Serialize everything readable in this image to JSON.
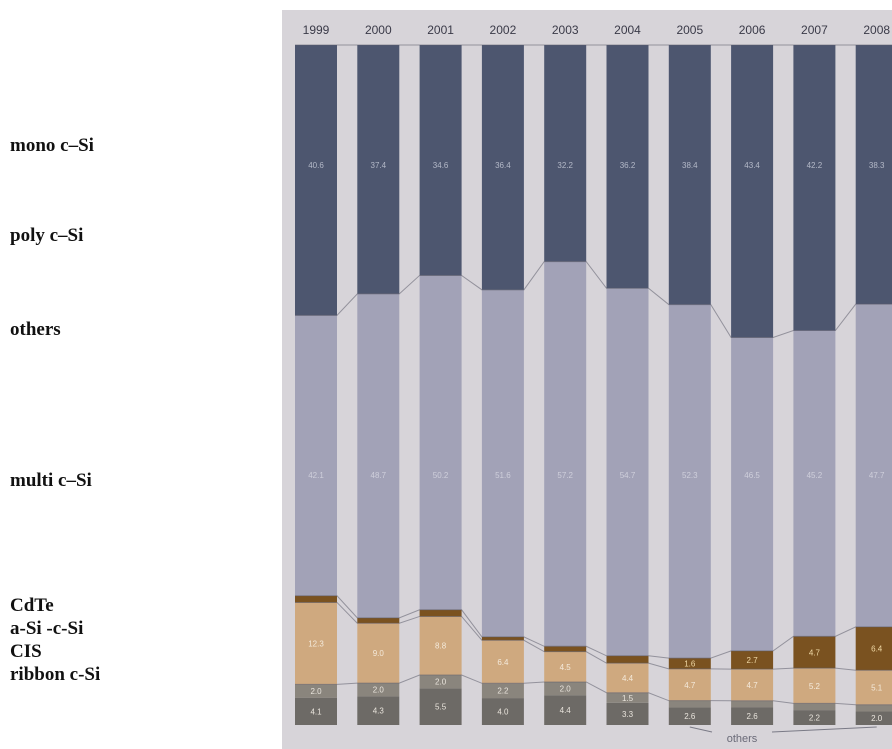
{
  "legend": {
    "mono": "mono c–Si",
    "poly": "poly c–Si",
    "others": "others",
    "multi": "multi c–Si",
    "cdte": "CdTe",
    "asi": "a-Si -c-Si",
    "cis": "CIS",
    "ribbon": "ribbon c-Si"
  },
  "chart_data": {
    "type": "bar",
    "stacked": true,
    "ylim": [
      0,
      100
    ],
    "categories": [
      "1999",
      "2000",
      "2001",
      "2002",
      "2003",
      "2004",
      "2005",
      "2006",
      "2007",
      "2008"
    ],
    "series": [
      {
        "name": "ribbon c-Si",
        "values": [
          4.1,
          4.3,
          5.5,
          4.0,
          4.4,
          3.3,
          2.6,
          2.6,
          2.2,
          2.0
        ]
      },
      {
        "name": "CIS",
        "values": [
          2.0,
          2.0,
          2.0,
          2.2,
          2.0,
          1.5,
          1.0,
          1.0,
          1.0,
          1.0
        ]
      },
      {
        "name": "a-Si -c-Si",
        "values": [
          12.3,
          9.0,
          8.8,
          6.4,
          4.5,
          4.4,
          4.7,
          4.7,
          5.2,
          5.1
        ]
      },
      {
        "name": "CdTe",
        "values": [
          1.0,
          0.8,
          1.0,
          0.5,
          0.8,
          1.1,
          1.6,
          2.7,
          4.7,
          6.4
        ]
      },
      {
        "name": "multi c–Si",
        "values": [
          42.1,
          48.7,
          50.2,
          51.6,
          57.2,
          54.7,
          52.3,
          46.5,
          45.2,
          47.7
        ]
      },
      {
        "name": "mono c–Si",
        "values": [
          40.6,
          37.4,
          34.6,
          36.4,
          32.2,
          36.2,
          38.4,
          43.4,
          42.2,
          38.3
        ]
      }
    ],
    "x_annotation": "others"
  }
}
